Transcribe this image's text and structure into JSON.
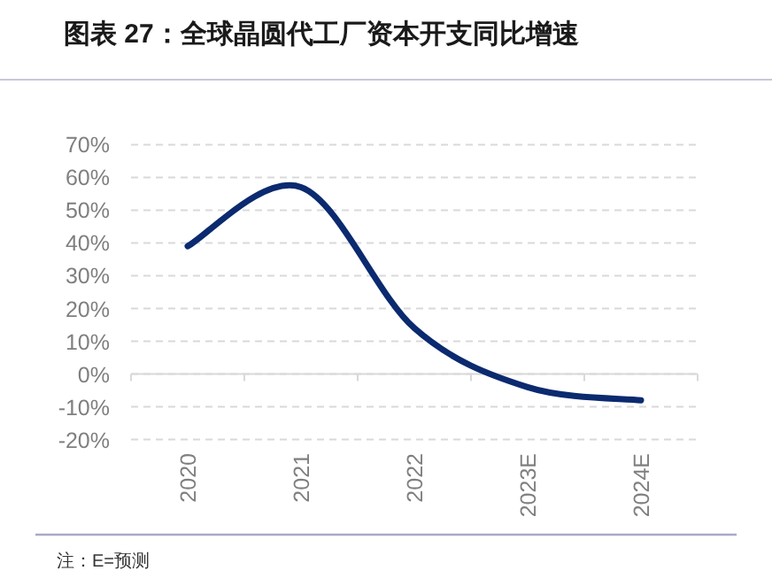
{
  "chart_data": {
    "type": "line",
    "title": "图表 27：全球晶圆代工厂资本开支同比增速",
    "categories": [
      "2020",
      "2021",
      "2022",
      "2023E",
      "2024E"
    ],
    "series": [
      {
        "color": "#0b2a6f",
        "values": [
          39,
          57,
          14,
          -4,
          -8
        ]
      }
    ],
    "ylim": [
      -20,
      70
    ],
    "yticks": [
      {
        "value": -20,
        "label": "-20%"
      },
      {
        "value": -10,
        "label": "-10%"
      },
      {
        "value": 0,
        "label": "0%"
      },
      {
        "value": 10,
        "label": "10%"
      },
      {
        "value": 20,
        "label": "20%"
      },
      {
        "value": 30,
        "label": "30%"
      },
      {
        "value": 40,
        "label": "40%"
      },
      {
        "value": 50,
        "label": "50%"
      },
      {
        "value": 60,
        "label": "60%"
      },
      {
        "value": 70,
        "label": "70%"
      }
    ],
    "grid": "y",
    "marker": "none",
    "line_style": "solid",
    "annotations": [
      "注：E=预测"
    ]
  }
}
